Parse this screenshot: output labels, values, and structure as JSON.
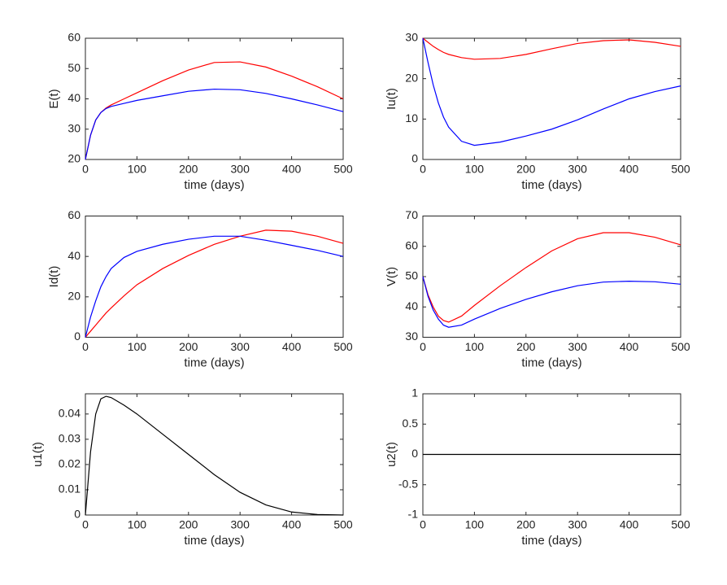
{
  "chart_data": [
    {
      "type": "line",
      "xlabel": "time (days)",
      "ylabel": "E(t)",
      "x": [
        0,
        10,
        20,
        30,
        40,
        50,
        75,
        100,
        150,
        200,
        250,
        300,
        350,
        400,
        450,
        500
      ],
      "series": [
        {
          "color": "#ff0000",
          "values": [
            20,
            28,
            33,
            35.5,
            37,
            38,
            40,
            42,
            46,
            49.5,
            52,
            52.2,
            50.5,
            47.5,
            44,
            40
          ]
        },
        {
          "color": "#0000ff",
          "values": [
            20,
            28,
            33,
            35.5,
            36.8,
            37.5,
            38.5,
            39.5,
            41,
            42.5,
            43.2,
            43,
            41.8,
            40,
            38,
            35.8
          ]
        }
      ],
      "xlim": [
        0,
        500
      ],
      "ylim": [
        20,
        60
      ],
      "xticks": [
        0,
        100,
        200,
        300,
        400,
        500
      ],
      "yticks": [
        20,
        30,
        40,
        50,
        60
      ]
    },
    {
      "type": "line",
      "xlabel": "time (days)",
      "ylabel": "Iu(t)",
      "x": [
        0,
        10,
        20,
        30,
        40,
        50,
        75,
        100,
        150,
        200,
        250,
        300,
        350,
        400,
        450,
        500
      ],
      "series": [
        {
          "color": "#ff0000",
          "values": [
            30,
            29,
            28,
            27.2,
            26.5,
            26,
            25.2,
            24.8,
            25,
            26,
            27.4,
            28.7,
            29.4,
            29.6,
            29,
            28
          ]
        },
        {
          "color": "#0000ff",
          "values": [
            30,
            24,
            18.5,
            14,
            10.5,
            8,
            4.5,
            3.5,
            4.3,
            5.8,
            7.5,
            9.8,
            12.5,
            15,
            16.8,
            18.2
          ]
        }
      ],
      "xlim": [
        0,
        500
      ],
      "ylim": [
        0,
        30
      ],
      "xticks": [
        0,
        100,
        200,
        300,
        400,
        500
      ],
      "yticks": [
        0,
        10,
        20,
        30
      ]
    },
    {
      "type": "line",
      "xlabel": "time (days)",
      "ylabel": "Id(t)",
      "x": [
        0,
        10,
        20,
        30,
        40,
        50,
        75,
        100,
        150,
        200,
        250,
        300,
        350,
        400,
        450,
        500
      ],
      "series": [
        {
          "color": "#ff0000",
          "values": [
            0,
            3,
            6,
            9,
            12,
            14.5,
            20.5,
            26,
            34,
            40.5,
            46,
            50,
            53,
            52.5,
            50,
            46.5
          ]
        },
        {
          "color": "#0000ff",
          "values": [
            0,
            10,
            18,
            25,
            30,
            34,
            39.5,
            42.5,
            46,
            48.5,
            50,
            50,
            48,
            45.5,
            43,
            40
          ]
        }
      ],
      "xlim": [
        0,
        500
      ],
      "ylim": [
        0,
        60
      ],
      "xticks": [
        0,
        100,
        200,
        300,
        400,
        500
      ],
      "yticks": [
        0,
        20,
        40,
        60
      ]
    },
    {
      "type": "line",
      "xlabel": "time (days)",
      "ylabel": "V(t)",
      "x": [
        0,
        10,
        20,
        30,
        40,
        50,
        75,
        100,
        150,
        200,
        250,
        300,
        350,
        400,
        450,
        500
      ],
      "series": [
        {
          "color": "#ff0000",
          "values": [
            50,
            44,
            40,
            37,
            35.5,
            35,
            37,
            40.5,
            47,
            53,
            58.5,
            62.5,
            64.5,
            64.5,
            63,
            60.5
          ]
        },
        {
          "color": "#0000ff",
          "values": [
            50,
            43.5,
            39,
            36,
            34,
            33.3,
            34,
            36,
            39.5,
            42.5,
            45,
            47,
            48.2,
            48.5,
            48.3,
            47.5
          ]
        }
      ],
      "xlim": [
        0,
        500
      ],
      "ylim": [
        30,
        70
      ],
      "xticks": [
        0,
        100,
        200,
        300,
        400,
        500
      ],
      "yticks": [
        30,
        40,
        50,
        60,
        70
      ]
    },
    {
      "type": "line",
      "xlabel": "time (days)",
      "ylabel": "u1(t)",
      "x": [
        0,
        10,
        20,
        30,
        40,
        50,
        75,
        100,
        150,
        200,
        250,
        300,
        350,
        400,
        450,
        500
      ],
      "series": [
        {
          "color": "#000000",
          "values": [
            0,
            0.025,
            0.04,
            0.046,
            0.047,
            0.0465,
            0.0435,
            0.04,
            0.032,
            0.024,
            0.016,
            0.009,
            0.004,
            0.0012,
            0.0002,
            0
          ]
        }
      ],
      "xlim": [
        0,
        500
      ],
      "ylim": [
        0,
        0.048
      ],
      "xticks": [
        0,
        100,
        200,
        300,
        400,
        500
      ],
      "yticks": [
        0,
        0.01,
        0.02,
        0.03,
        0.04
      ]
    },
    {
      "type": "line",
      "xlabel": "time (days)",
      "ylabel": "u2(t)",
      "x": [
        0,
        10,
        20,
        30,
        40,
        50,
        75,
        100,
        150,
        200,
        250,
        300,
        350,
        400,
        450,
        500
      ],
      "series": [
        {
          "color": "#000000",
          "values": [
            0,
            0,
            0,
            0,
            0,
            0,
            0,
            0,
            0,
            0,
            0,
            0,
            0,
            0,
            0,
            0
          ]
        }
      ],
      "xlim": [
        0,
        500
      ],
      "ylim": [
        -1,
        1
      ],
      "xticks": [
        0,
        100,
        200,
        300,
        400,
        500
      ],
      "yticks": [
        -1,
        -0.5,
        0,
        0.5,
        1
      ]
    }
  ]
}
